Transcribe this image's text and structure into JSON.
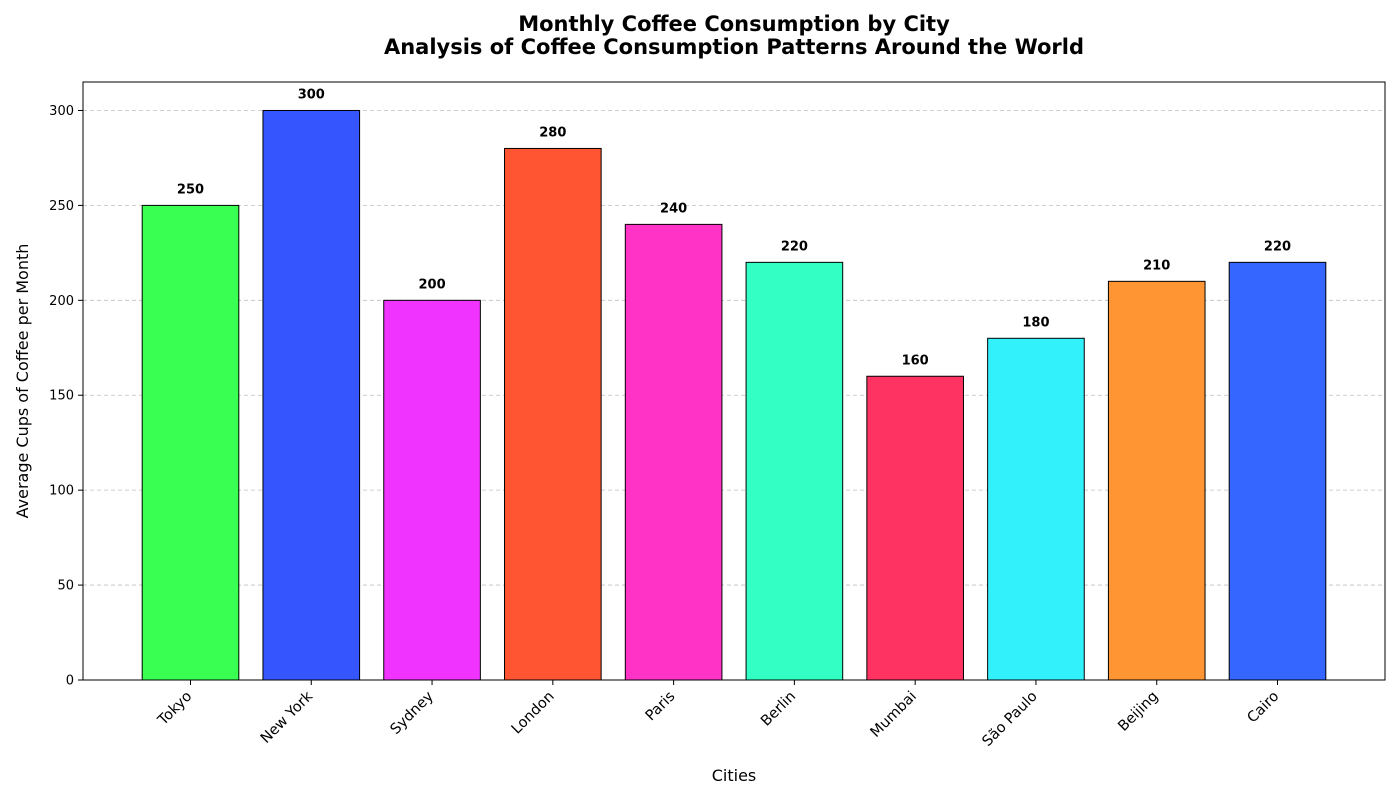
{
  "chart_data": {
    "type": "bar",
    "title": "Monthly Coffee Consumption by City",
    "subtitle": "Analysis of Coffee Consumption Patterns Around the World",
    "xlabel": "Cities",
    "ylabel": "Average Cups of Coffee per Month",
    "categories": [
      "Tokyo",
      "New York",
      "Sydney",
      "London",
      "Paris",
      "Berlin",
      "Mumbai",
      "São Paulo",
      "Beijing",
      "Cairo"
    ],
    "values": [
      250,
      300,
      200,
      280,
      240,
      220,
      160,
      180,
      210,
      220
    ],
    "colors": [
      "#39ff52",
      "#3556ff",
      "#f033ff",
      "#ff5533",
      "#ff33c5",
      "#33ffc4",
      "#ff3362",
      "#33f1fb",
      "#ff9533",
      "#3566ff"
    ],
    "ylim": [
      0,
      315
    ],
    "yticks": [
      0,
      50,
      100,
      150,
      200,
      250,
      300
    ],
    "grid": "y-dashed",
    "legend": "none"
  }
}
